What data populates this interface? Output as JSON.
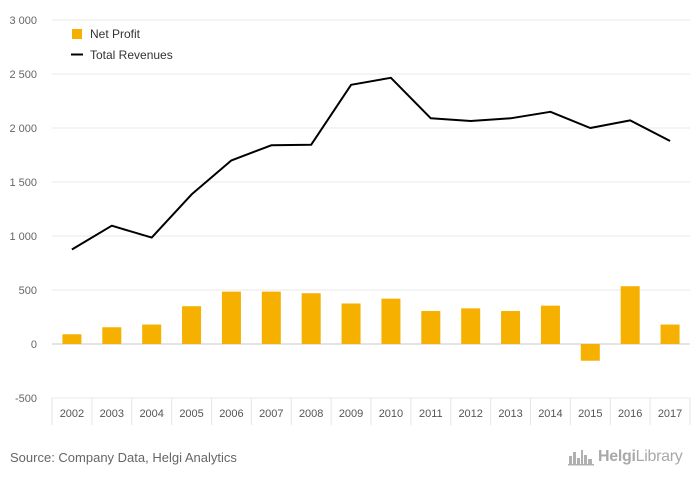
{
  "chart_data": {
    "type": "bar",
    "categories": [
      "2002",
      "2003",
      "2004",
      "2005",
      "2006",
      "2007",
      "2008",
      "2009",
      "2010",
      "2011",
      "2012",
      "2013",
      "2014",
      "2015",
      "2016",
      "2017"
    ],
    "series": [
      {
        "name": "Net Profit",
        "type": "bar",
        "color": "#f5b000",
        "values": [
          90,
          155,
          180,
          350,
          485,
          485,
          470,
          375,
          420,
          305,
          330,
          305,
          355,
          -155,
          535,
          180
        ]
      },
      {
        "name": "Total Revenues",
        "type": "line",
        "color": "#000000",
        "values": [
          875,
          1095,
          985,
          1385,
          1700,
          1840,
          1845,
          2400,
          2465,
          2090,
          2065,
          2090,
          2150,
          2000,
          2070,
          1880
        ]
      }
    ],
    "yticks": [
      "3 000",
      "2 500",
      "2 000",
      "1 500",
      "1 000",
      "500",
      "0",
      "-500"
    ],
    "ylim": [
      -500,
      3000
    ],
    "grid": true,
    "legend_position": "top-left"
  },
  "legend": {
    "net_profit_label": "Net Profit",
    "total_revenues_label": "Total Revenues"
  },
  "footer": {
    "source": "Source: Company Data, Helgi Analytics",
    "brand_bold": "Helgi",
    "brand_rest": "Library"
  },
  "icons": {
    "brand_logo": "city-skyline-icon"
  }
}
